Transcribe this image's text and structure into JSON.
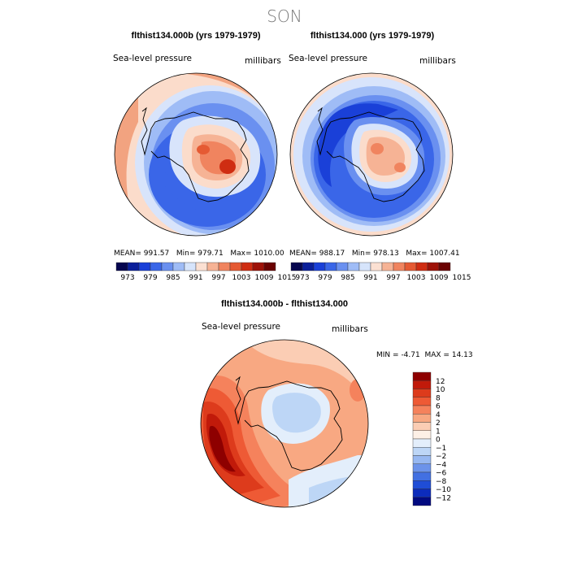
{
  "page": {
    "season_title": "SON"
  },
  "panels": [
    {
      "title": "flthist134.000b (yrs 1979-1979)",
      "variable": "Sea-level pressure",
      "units": "millibars",
      "stats": {
        "mean_label": "MEAN=",
        "mean": "991.57",
        "min_label": "Min=",
        "min": "979.71",
        "max_label": "Max=",
        "max": "1010.00"
      }
    },
    {
      "title": "flthist134.000 (yrs 1979-1979)",
      "variable": "Sea-level pressure",
      "units": "millibars",
      "stats": {
        "mean_label": "MEAN=",
        "mean": "988.17",
        "min_label": "Min=",
        "min": "978.13",
        "max_label": "Max=",
        "max": "1007.41"
      }
    },
    {
      "title": "flthist134.000b - flthist134.000",
      "variable": "Sea-level pressure",
      "units": "millibars",
      "stats": {
        "min_label": "MIN =",
        "min": "-4.71",
        "max_label": "MAX =",
        "max": "14.13"
      }
    }
  ],
  "chart_data": [
    {
      "type": "heatmap",
      "projection": "south-polar-stereographic",
      "title": "flthist134.000b (yrs 1979-1979)",
      "variable": "Sea-level pressure",
      "units": "millibars",
      "stats": {
        "mean": 991.57,
        "min": 979.71,
        "max": 1010.0
      },
      "colorbar": {
        "orientation": "horizontal",
        "levels": [
          973,
          979,
          985,
          991,
          997,
          1003,
          1009,
          1015
        ],
        "colors": [
          "#06064f",
          "#0b1f9a",
          "#1a40d8",
          "#3a66e8",
          "#6a90f0",
          "#9fbcf6",
          "#d6e4fb",
          "#fbe0d2",
          "#f6b395",
          "#f0845f",
          "#e55a33",
          "#cf2d12",
          "#9e1208",
          "#6a0202"
        ]
      }
    },
    {
      "type": "heatmap",
      "projection": "south-polar-stereographic",
      "title": "flthist134.000 (yrs 1979-1979)",
      "variable": "Sea-level pressure",
      "units": "millibars",
      "stats": {
        "mean": 988.17,
        "min": 978.13,
        "max": 1007.41
      },
      "colorbar": {
        "orientation": "horizontal",
        "levels": [
          973,
          979,
          985,
          991,
          997,
          1003,
          1009,
          1015
        ],
        "colors": [
          "#06064f",
          "#0b1f9a",
          "#1a40d8",
          "#3a66e8",
          "#6a90f0",
          "#9fbcf6",
          "#d6e4fb",
          "#fbe0d2",
          "#f6b395",
          "#f0845f",
          "#e55a33",
          "#cf2d12",
          "#9e1208",
          "#6a0202"
        ]
      }
    },
    {
      "type": "heatmap",
      "projection": "south-polar-stereographic",
      "title": "flthist134.000b - flthist134.000",
      "variable": "Sea-level pressure",
      "units": "millibars",
      "stats": {
        "min": -4.71,
        "max": 14.13
      },
      "colorbar": {
        "orientation": "vertical",
        "levels": [
          12,
          10,
          8,
          6,
          4,
          2,
          1,
          0,
          -1,
          -2,
          -4,
          -6,
          -8,
          -10,
          -12
        ],
        "colors": [
          "#8e0000",
          "#c11a0a",
          "#dd3b1c",
          "#ee5a35",
          "#f5825c",
          "#f8a882",
          "#fbcdb4",
          "#fdf0e6",
          "#e3eefb",
          "#bdd6f6",
          "#97b8f1",
          "#6c93ea",
          "#4270e2",
          "#1f4dd6",
          "#0c2cbc",
          "#020a80"
        ]
      }
    }
  ]
}
